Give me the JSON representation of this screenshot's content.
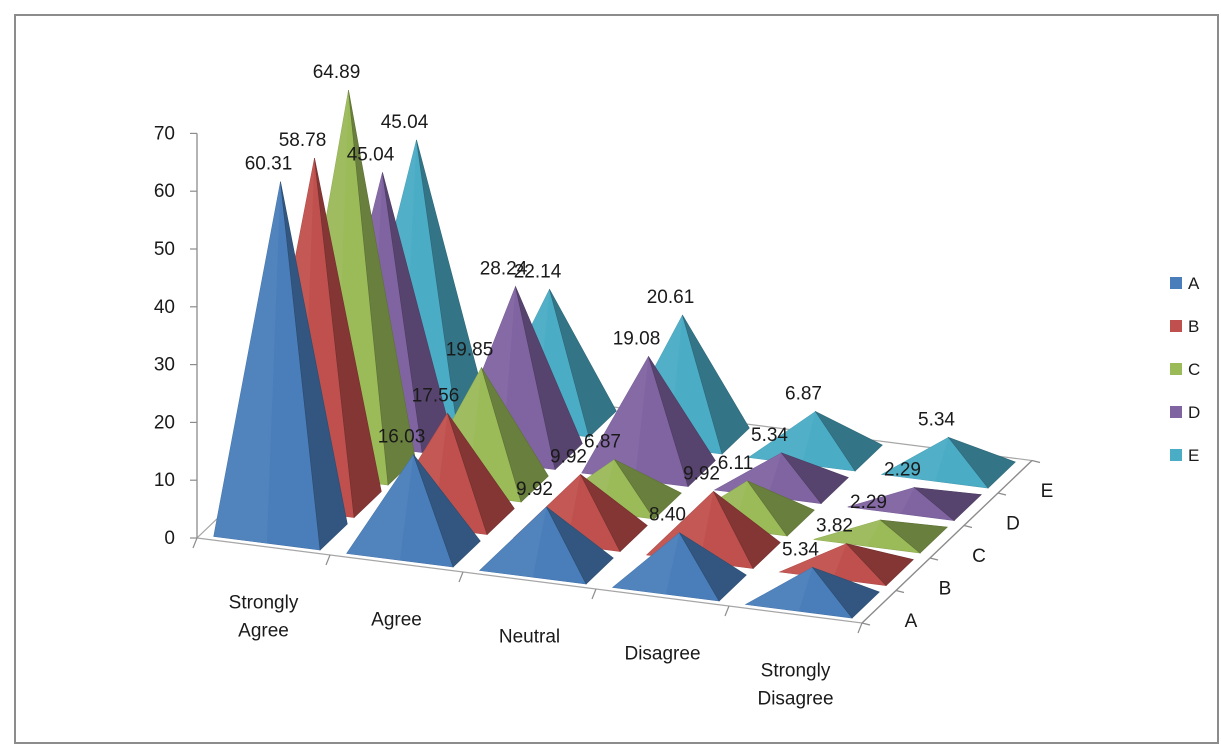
{
  "chart_data": {
    "type": "bar",
    "subtype": "3d-pyramid",
    "title": "",
    "xlabel": "",
    "ylabel": "",
    "ylim": [
      0,
      70
    ],
    "y_ticks": [
      "0",
      "10",
      "20",
      "30",
      "40",
      "50",
      "60",
      "70"
    ],
    "categories": [
      "Strongly Agree",
      "Agree",
      "Neutral",
      "Disagree",
      "Strongly Disagree"
    ],
    "category_lines": [
      [
        "Strongly",
        "Agree"
      ],
      [
        "Agree"
      ],
      [
        "Neutral"
      ],
      [
        "Disagree"
      ],
      [
        "Strongly",
        "Disagree"
      ]
    ],
    "series": [
      {
        "name": "A",
        "color": "#4a7ebb",
        "values": [
          60.31,
          16.03,
          9.92,
          8.4,
          5.34
        ],
        "labels": [
          "60.31",
          "16.03",
          "9.92",
          "8.40",
          "5.34"
        ]
      },
      {
        "name": "B",
        "color": "#c0504d",
        "values": [
          58.78,
          17.56,
          9.92,
          9.92,
          3.82
        ],
        "labels": [
          "58.78",
          "17.56",
          "9.92",
          "9.92",
          "3.82"
        ]
      },
      {
        "name": "C",
        "color": "#9bbb59",
        "values": [
          64.89,
          19.85,
          6.87,
          6.11,
          2.29
        ],
        "labels": [
          "64.89",
          "19.85",
          "6.87",
          "6.11",
          "2.29"
        ]
      },
      {
        "name": "D",
        "color": "#8064a2",
        "values": [
          45.04,
          28.24,
          19.08,
          5.34,
          2.29
        ],
        "labels": [
          "45.04",
          "28.24",
          "19.08",
          "5.34",
          "2.29"
        ]
      },
      {
        "name": "E",
        "color": "#4bacc6",
        "values": [
          45.04,
          22.14,
          20.61,
          6.87,
          5.34
        ],
        "labels": [
          "45.04",
          "22.14",
          "20.61",
          "6.87",
          "5.34"
        ]
      }
    ],
    "depth_axis_labels": [
      "A",
      "B",
      "C",
      "D",
      "E"
    ],
    "legend": {
      "position": "right",
      "entries": [
        "A",
        "B",
        "C",
        "D",
        "E"
      ]
    },
    "grid": false
  }
}
